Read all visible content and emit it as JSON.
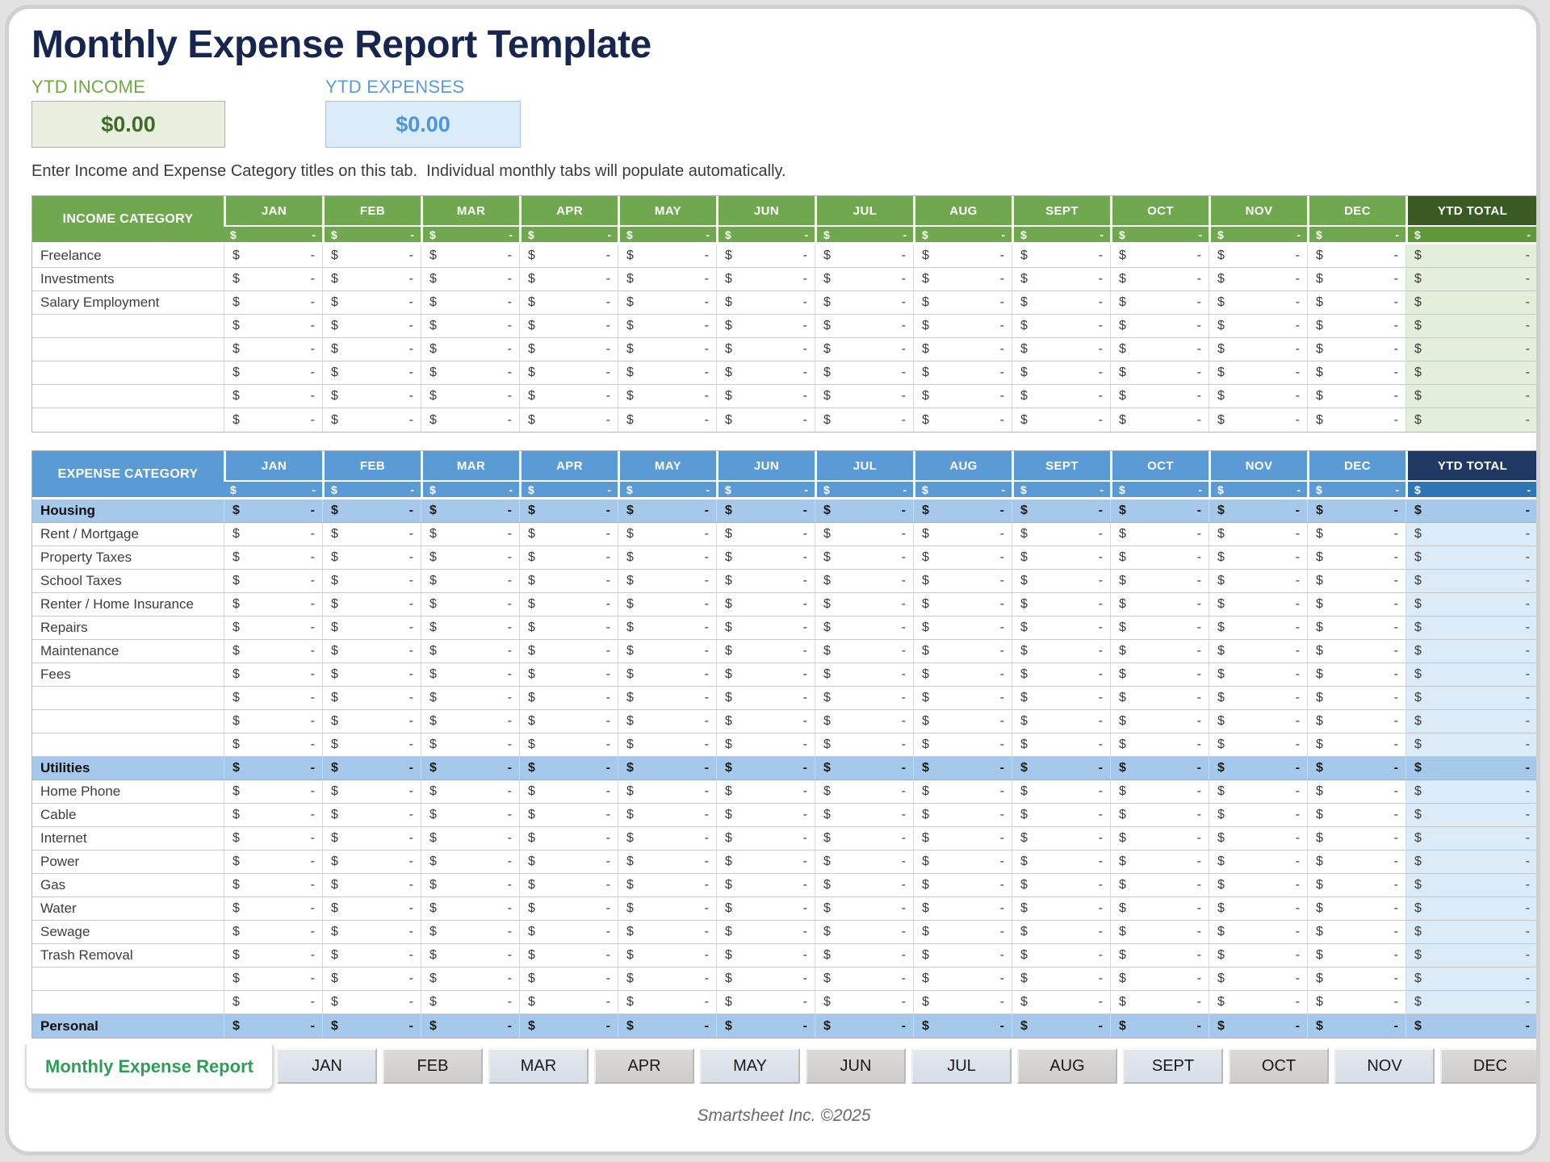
{
  "page": {
    "title": "Monthly Expense Report Template",
    "footer": "Smartsheet Inc. ©2025"
  },
  "summary": {
    "income": {
      "label": "YTD INCOME",
      "value": "$0.00"
    },
    "expenses": {
      "label": "YTD EXPENSES",
      "value": "$0.00"
    }
  },
  "instruction": "Enter Income and Expense Category titles on this tab.  Individual monthly tabs will populate automatically.",
  "months": [
    "JAN",
    "FEB",
    "MAR",
    "APR",
    "MAY",
    "JUN",
    "JUL",
    "AUG",
    "SEPT",
    "OCT",
    "NOV",
    "DEC"
  ],
  "cell": {
    "currency": "$",
    "placeholder": "-"
  },
  "income_table": {
    "category_header": "INCOME CATEGORY",
    "ytd_header": "YTD TOTAL",
    "rows": [
      {
        "label": "Freelance",
        "section": false
      },
      {
        "label": "Investments",
        "section": false
      },
      {
        "label": "Salary Employment",
        "section": false
      },
      {
        "label": "",
        "section": false
      },
      {
        "label": "",
        "section": false
      },
      {
        "label": "",
        "section": false
      },
      {
        "label": "",
        "section": false
      },
      {
        "label": "",
        "section": false
      }
    ]
  },
  "expense_table": {
    "category_header": "EXPENSE CATEGORY",
    "ytd_header": "YTD TOTAL",
    "rows": [
      {
        "label": "Housing",
        "section": true
      },
      {
        "label": "Rent / Mortgage",
        "section": false
      },
      {
        "label": "Property Taxes",
        "section": false
      },
      {
        "label": "School Taxes",
        "section": false
      },
      {
        "label": "Renter / Home Insurance",
        "section": false
      },
      {
        "label": "Repairs",
        "section": false
      },
      {
        "label": "Maintenance",
        "section": false
      },
      {
        "label": "Fees",
        "section": false
      },
      {
        "label": "",
        "section": false
      },
      {
        "label": "",
        "section": false
      },
      {
        "label": "",
        "section": false
      },
      {
        "label": "Utilities",
        "section": true
      },
      {
        "label": "Home Phone",
        "section": false
      },
      {
        "label": "Cable",
        "section": false
      },
      {
        "label": "Internet",
        "section": false
      },
      {
        "label": "Power",
        "section": false
      },
      {
        "label": "Gas",
        "section": false
      },
      {
        "label": "Water",
        "section": false
      },
      {
        "label": "Sewage",
        "section": false
      },
      {
        "label": "Trash Removal",
        "section": false
      },
      {
        "label": "",
        "section": false
      },
      {
        "label": "",
        "section": false
      },
      {
        "label": "Personal",
        "section": true
      }
    ]
  },
  "tabs": {
    "active_label": "Monthly Expense Report"
  },
  "colors": {
    "title": "#17264f",
    "income_accent": "#70a944",
    "income_header": "#6fa84e",
    "income_header_dark": "#3a5a23",
    "income_ytd_subheader": "#5f9838",
    "income_ytd_cell": "#e4efdb",
    "income_box_bg": "#e9f0df",
    "expense_accent": "#5b9bd5",
    "expense_header": "#5b9bd5",
    "expense_header_dark": "#1f3864",
    "expense_ytd_subheader": "#2e75b6",
    "expense_ytd_cell": "#dcebf8",
    "expense_subtotal_row": "#a6c8ea",
    "expense_box_bg": "#dcebf8",
    "active_tab_text": "#2f9e57"
  }
}
